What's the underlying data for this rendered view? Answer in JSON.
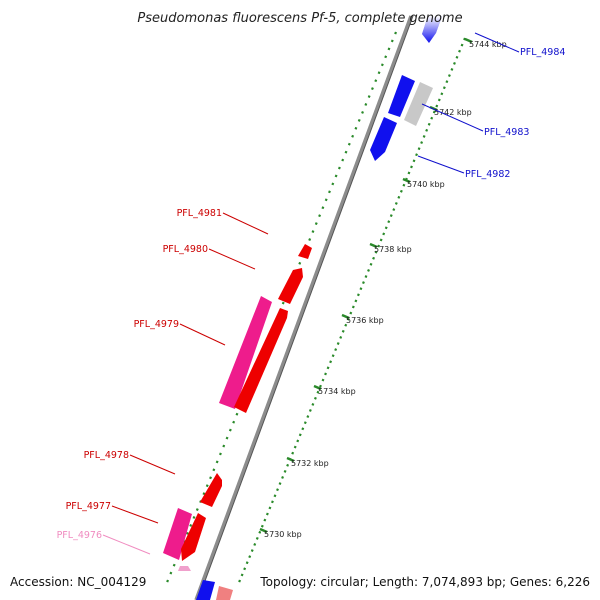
{
  "title": "Pseudomonas fluorescens Pf-5, complete genome",
  "footer": {
    "accession": "Accession: NC_004129",
    "summary": "Topology: circular; Length: 7,074,893 bp; Genes: 6,226"
  },
  "colors": {
    "backbone": "#8c8c8c",
    "tick": "#2a8a2a",
    "forward_gene": "#ee0000",
    "forward_gene_alt": "#ee1c8c",
    "reverse_gene": "#1010ee",
    "hypothetical": "#c8c8c8",
    "pink_light": "#f0a0cc",
    "salmon": "#f08080"
  },
  "ticks": [
    {
      "label": "5744 kbp"
    },
    {
      "label": "5742 kbp"
    },
    {
      "label": "5740 kbp"
    },
    {
      "label": "5738 kbp"
    },
    {
      "label": "5736 kbp"
    },
    {
      "label": "5734 kbp"
    },
    {
      "label": "5732 kbp"
    },
    {
      "label": "5730 kbp"
    }
  ],
  "genes": [
    {
      "id": "PFL_4984",
      "label": "PFL_4984",
      "color": "#1010cc"
    },
    {
      "id": "PFL_4983",
      "label": "PFL_4983",
      "color": "#1010cc"
    },
    {
      "id": "PFL_4982",
      "label": "PFL_4982",
      "color": "#1010cc"
    },
    {
      "id": "PFL_4981",
      "label": "PFL_4981",
      "color": "#cc0000"
    },
    {
      "id": "PFL_4980",
      "label": "PFL_4980",
      "color": "#cc0000"
    },
    {
      "id": "PFL_4979",
      "label": "PFL_4979",
      "color": "#cc0000"
    },
    {
      "id": "PFL_4978",
      "label": "PFL_4978",
      "color": "#cc0000"
    },
    {
      "id": "PFL_4977",
      "label": "PFL_4977",
      "color": "#cc0000"
    },
    {
      "id": "PFL_4976",
      "label": "PFL_4976",
      "color": "#f08cc0"
    }
  ]
}
